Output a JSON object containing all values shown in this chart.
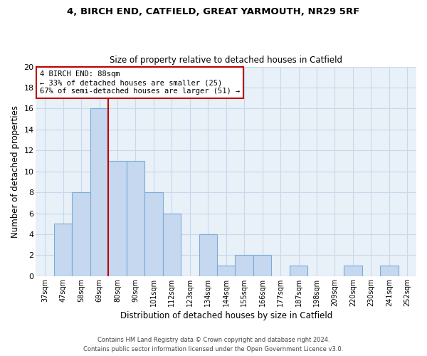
{
  "title1": "4, BIRCH END, CATFIELD, GREAT YARMOUTH, NR29 5RF",
  "title2": "Size of property relative to detached houses in Catfield",
  "xlabel": "Distribution of detached houses by size in Catfield",
  "ylabel": "Number of detached properties",
  "categories": [
    "37sqm",
    "47sqm",
    "58sqm",
    "69sqm",
    "80sqm",
    "90sqm",
    "101sqm",
    "112sqm",
    "123sqm",
    "134sqm",
    "144sqm",
    "155sqm",
    "166sqm",
    "177sqm",
    "187sqm",
    "198sqm",
    "209sqm",
    "220sqm",
    "230sqm",
    "241sqm",
    "252sqm"
  ],
  "values": [
    0,
    5,
    8,
    16,
    11,
    11,
    8,
    6,
    0,
    4,
    1,
    2,
    2,
    0,
    1,
    0,
    0,
    1,
    0,
    1,
    0
  ],
  "bar_color": "#c5d8ef",
  "bar_edge_color": "#7badd4",
  "vline_color": "#c00000",
  "vline_position": 3.5,
  "annotation_text": "4 BIRCH END: 88sqm\n← 33% of detached houses are smaller (25)\n67% of semi-detached houses are larger (51) →",
  "annotation_box_color": "#ffffff",
  "annotation_box_edge": "#c00000",
  "ylim": [
    0,
    20
  ],
  "yticks": [
    0,
    2,
    4,
    6,
    8,
    10,
    12,
    14,
    16,
    18,
    20
  ],
  "grid_color": "#c8d8ec",
  "background_color": "#e8f0f8",
  "footer1": "Contains HM Land Registry data © Crown copyright and database right 2024.",
  "footer2": "Contains public sector information licensed under the Open Government Licence v3.0."
}
